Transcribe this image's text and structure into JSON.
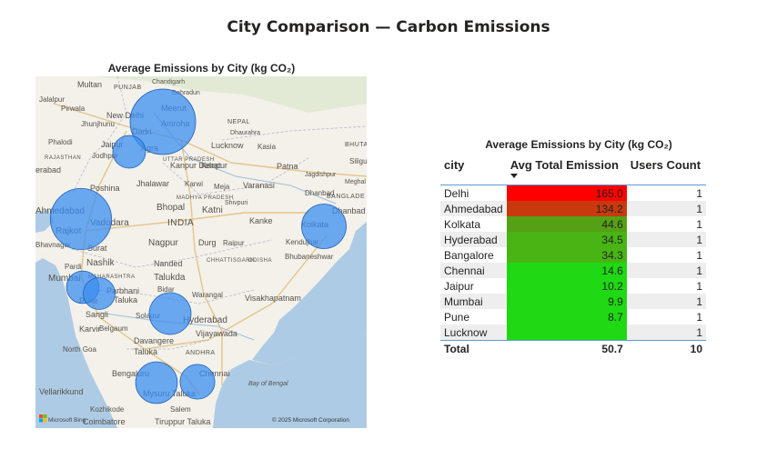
{
  "page": {
    "title": "City Comparison — Carbon Emissions"
  },
  "map": {
    "title": "Average Emissions by City (kg CO₂)",
    "bubble_color": "#3b8ef0",
    "attribution_logo": "Microsoft Bing",
    "copyright": "© 2025 Microsoft Corporation",
    "labels": [
      {
        "text": "Multan"
      },
      {
        "text": "PUNJAB"
      },
      {
        "text": "Chandigarh"
      },
      {
        "text": "Jalalpur"
      },
      {
        "text": "Pirwala"
      },
      {
        "text": "Dehradun"
      },
      {
        "text": "Meerut"
      },
      {
        "text": "Jhunjhunu"
      },
      {
        "text": "New Delhi"
      },
      {
        "text": "NEPAL"
      },
      {
        "text": "Dadri"
      },
      {
        "text": "Amroha"
      },
      {
        "text": "Dhaurahra"
      },
      {
        "text": "Phalodi"
      },
      {
        "text": "Jaipur"
      },
      {
        "text": "Agra"
      },
      {
        "text": "Lucknow"
      },
      {
        "text": "Kasia"
      },
      {
        "text": "BHUTA"
      },
      {
        "text": "RAJASTHAN"
      },
      {
        "text": "Jodhpur"
      },
      {
        "text": "UTTAR PRADESH"
      },
      {
        "text": "Kanpur Dehat"
      },
      {
        "text": "Kanpur"
      },
      {
        "text": "Patna"
      },
      {
        "text": "Siligu"
      },
      {
        "text": "erabad"
      },
      {
        "text": "Jagdishpur"
      },
      {
        "text": "Meghal"
      },
      {
        "text": "Poshina"
      },
      {
        "text": "Jhalawar"
      },
      {
        "text": "Karwi"
      },
      {
        "text": "Meja"
      },
      {
        "text": "Varanasi"
      },
      {
        "text": "BANGLADE"
      },
      {
        "text": "MADHYA PRADESH"
      },
      {
        "text": "Shivpuri"
      },
      {
        "text": "Ahmedabad"
      },
      {
        "text": "Vadodara"
      },
      {
        "text": "Bhopal"
      },
      {
        "text": "Katni"
      },
      {
        "text": "Dhanbad"
      },
      {
        "text": "Dhanbad"
      },
      {
        "text": "Rajkot"
      },
      {
        "text": "INDIA"
      },
      {
        "text": "Kanke"
      },
      {
        "text": "Kolkata"
      },
      {
        "text": "Surat"
      },
      {
        "text": "Bhavnagar"
      },
      {
        "text": "Nagpur"
      },
      {
        "text": "Durg"
      },
      {
        "text": "Raipur"
      },
      {
        "text": "Kendujhar"
      },
      {
        "text": "Bhubaneshwar"
      },
      {
        "text": "Nashik"
      },
      {
        "text": "Pardi"
      },
      {
        "text": "Nanded"
      },
      {
        "text": "CHHATTISGARH"
      },
      {
        "text": "ODISHA"
      },
      {
        "text": "MAHARASHTRA"
      },
      {
        "text": "Talukda"
      },
      {
        "text": "Mumbai"
      },
      {
        "text": "Parbhani"
      },
      {
        "text": "Bidar"
      },
      {
        "text": "Pune"
      },
      {
        "text": "Taluka"
      },
      {
        "text": "Warangal"
      },
      {
        "text": "Visakhapatnam"
      },
      {
        "text": "Sangli"
      },
      {
        "text": "Solapur"
      },
      {
        "text": "Hyderabad"
      },
      {
        "text": "Karvir"
      },
      {
        "text": "Belgaum"
      },
      {
        "text": "Davangere"
      },
      {
        "text": "Vijayawada"
      },
      {
        "text": "North Goa"
      },
      {
        "text": "Taluka"
      },
      {
        "text": "ANDHRA"
      },
      {
        "text": "Bengaluru"
      },
      {
        "text": "Chennai"
      },
      {
        "text": "Vellarikkund"
      },
      {
        "text": "Mysuru Taluka"
      },
      {
        "text": "Kozhikode"
      },
      {
        "text": "Salem"
      },
      {
        "text": "Coimbatore"
      },
      {
        "text": "Tiruppur Taluka"
      },
      {
        "text": "Bay of Bengal"
      }
    ]
  },
  "table": {
    "title": "Average Emissions by City (kg CO₂)",
    "columns": [
      "city",
      "Avg Total Emission",
      "Users Count"
    ],
    "rows": [
      {
        "city": "Delhi",
        "avg": "165.0",
        "users": "1",
        "fill": "#ff0000"
      },
      {
        "city": "Ahmedabad",
        "avg": "134.2",
        "users": "1",
        "fill": "#c83a0d"
      },
      {
        "city": "Kolkata",
        "avg": "44.6",
        "users": "1",
        "fill": "#55a014"
      },
      {
        "city": "Hyderabad",
        "avg": "34.5",
        "users": "1",
        "fill": "#48b514"
      },
      {
        "city": "Bangalore",
        "avg": "34.3",
        "users": "1",
        "fill": "#48b514"
      },
      {
        "city": "Chennai",
        "avg": "14.6",
        "users": "1",
        "fill": "#1ed914"
      },
      {
        "city": "Jaipur",
        "avg": "10.2",
        "users": "1",
        "fill": "#1ed914"
      },
      {
        "city": "Mumbai",
        "avg": "9.9",
        "users": "1",
        "fill": "#1ed914"
      },
      {
        "city": "Pune",
        "avg": "8.7",
        "users": "1",
        "fill": "#1ed914"
      },
      {
        "city": "Lucknow",
        "avg": "",
        "users": "1",
        "fill": "#1ed914"
      }
    ],
    "total": {
      "label": "Total",
      "avg": "50.7",
      "users": "10"
    }
  }
}
